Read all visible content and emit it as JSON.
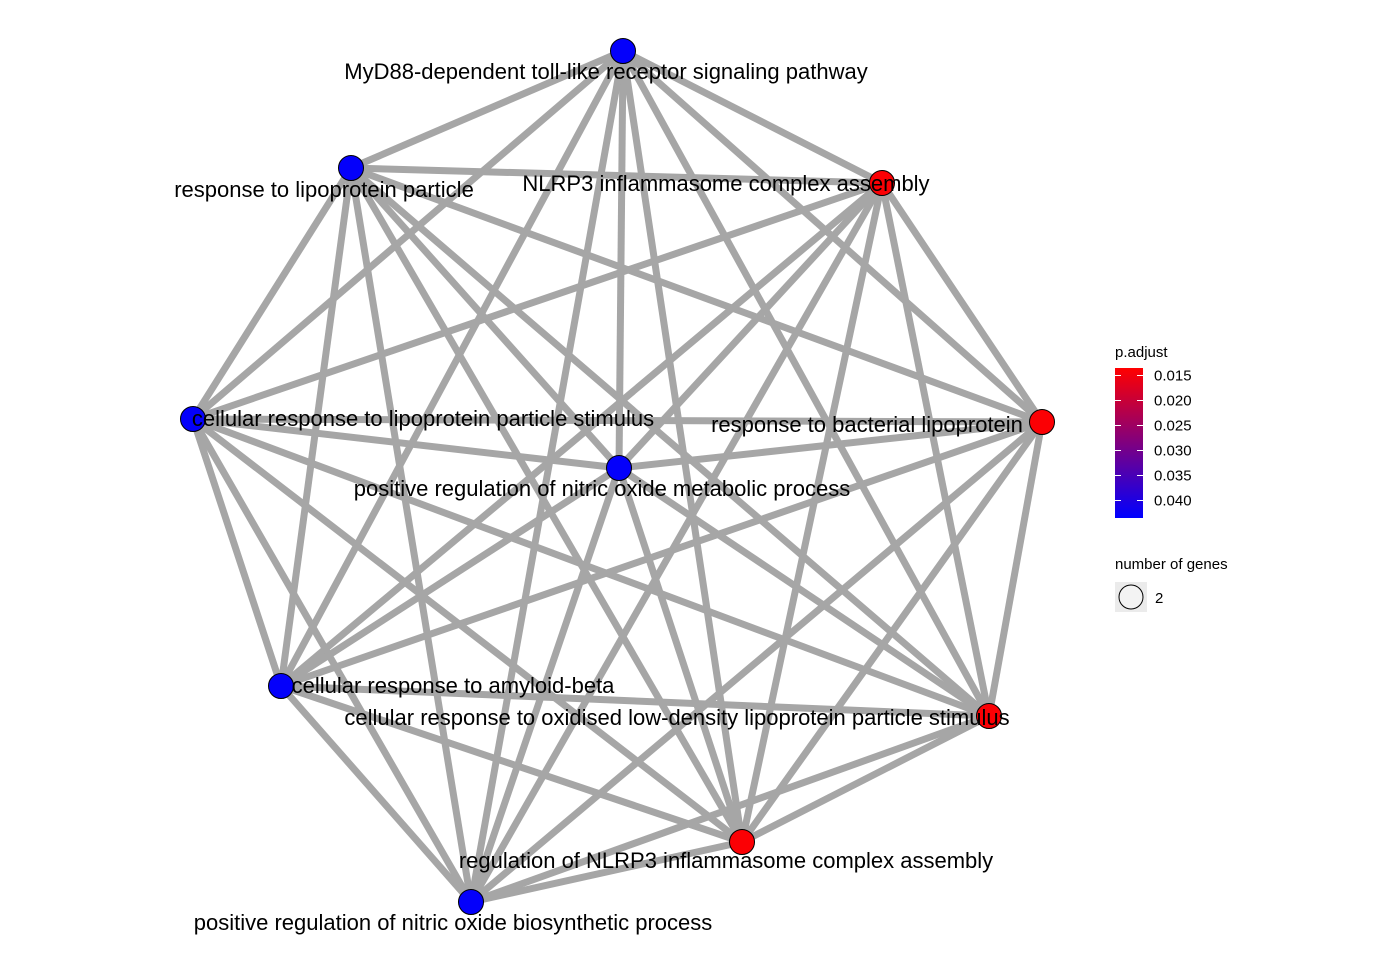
{
  "network": {
    "edge_color": "#a6a6a6",
    "nodes": [
      {
        "id": "myd88",
        "label": "MyD88-dependent toll-like receptor signaling pathway",
        "p_adjust": 0.043,
        "genes": 2
      },
      {
        "id": "nlrp3_assembly",
        "label": "NLRP3 inflammasome complex assembly",
        "p_adjust": 0.014,
        "genes": 2
      },
      {
        "id": "lipoprotein_particle",
        "label": "response to lipoprotein particle",
        "p_adjust": 0.043,
        "genes": 2
      },
      {
        "id": "cell_lipoprotein_stim",
        "label": "cellular response to lipoprotein particle stimulus",
        "p_adjust": 0.043,
        "genes": 2
      },
      {
        "id": "bacterial_lipoprotein",
        "label": "response to bacterial lipoprotein",
        "p_adjust": 0.014,
        "genes": 2
      },
      {
        "id": "no_metabolic",
        "label": "positive regulation of nitric oxide metabolic process",
        "p_adjust": 0.043,
        "genes": 2
      },
      {
        "id": "amyloid_beta",
        "label": "cellular response to amyloid-beta",
        "p_adjust": 0.043,
        "genes": 2
      },
      {
        "id": "oxidised_ldl",
        "label": "cellular response to oxidised low-density lipoprotein particle stimulus",
        "p_adjust": 0.014,
        "genes": 2
      },
      {
        "id": "reg_nlrp3",
        "label": "regulation of NLRP3 inflammasome complex assembly",
        "p_adjust": 0.014,
        "genes": 2
      },
      {
        "id": "no_biosynthetic",
        "label": "positive regulation of nitric oxide biosynthetic process",
        "p_adjust": 0.043,
        "genes": 2
      }
    ],
    "edges": [
      [
        "myd88",
        "lipoprotein_particle"
      ],
      [
        "myd88",
        "nlrp3_assembly"
      ],
      [
        "myd88",
        "cell_lipoprotein_stim"
      ],
      [
        "myd88",
        "bacterial_lipoprotein"
      ],
      [
        "myd88",
        "no_metabolic"
      ],
      [
        "myd88",
        "amyloid_beta"
      ],
      [
        "myd88",
        "oxidised_ldl"
      ],
      [
        "myd88",
        "reg_nlrp3"
      ],
      [
        "myd88",
        "no_biosynthetic"
      ],
      [
        "lipoprotein_particle",
        "nlrp3_assembly"
      ],
      [
        "lipoprotein_particle",
        "cell_lipoprotein_stim"
      ],
      [
        "lipoprotein_particle",
        "bacterial_lipoprotein"
      ],
      [
        "lipoprotein_particle",
        "no_metabolic"
      ],
      [
        "lipoprotein_particle",
        "amyloid_beta"
      ],
      [
        "lipoprotein_particle",
        "oxidised_ldl"
      ],
      [
        "lipoprotein_particle",
        "reg_nlrp3"
      ],
      [
        "lipoprotein_particle",
        "no_biosynthetic"
      ],
      [
        "nlrp3_assembly",
        "cell_lipoprotein_stim"
      ],
      [
        "nlrp3_assembly",
        "bacterial_lipoprotein"
      ],
      [
        "nlrp3_assembly",
        "no_metabolic"
      ],
      [
        "nlrp3_assembly",
        "amyloid_beta"
      ],
      [
        "nlrp3_assembly",
        "oxidised_ldl"
      ],
      [
        "nlrp3_assembly",
        "reg_nlrp3"
      ],
      [
        "nlrp3_assembly",
        "no_biosynthetic"
      ],
      [
        "cell_lipoprotein_stim",
        "bacterial_lipoprotein"
      ],
      [
        "cell_lipoprotein_stim",
        "no_metabolic"
      ],
      [
        "cell_lipoprotein_stim",
        "amyloid_beta"
      ],
      [
        "cell_lipoprotein_stim",
        "oxidised_ldl"
      ],
      [
        "cell_lipoprotein_stim",
        "reg_nlrp3"
      ],
      [
        "cell_lipoprotein_stim",
        "no_biosynthetic"
      ],
      [
        "bacterial_lipoprotein",
        "no_metabolic"
      ],
      [
        "bacterial_lipoprotein",
        "amyloid_beta"
      ],
      [
        "bacterial_lipoprotein",
        "oxidised_ldl"
      ],
      [
        "bacterial_lipoprotein",
        "reg_nlrp3"
      ],
      [
        "bacterial_lipoprotein",
        "no_biosynthetic"
      ],
      [
        "no_metabolic",
        "amyloid_beta"
      ],
      [
        "no_metabolic",
        "oxidised_ldl"
      ],
      [
        "no_metabolic",
        "reg_nlrp3"
      ],
      [
        "no_metabolic",
        "no_biosynthetic"
      ],
      [
        "amyloid_beta",
        "oxidised_ldl"
      ],
      [
        "amyloid_beta",
        "reg_nlrp3"
      ],
      [
        "amyloid_beta",
        "no_biosynthetic"
      ],
      [
        "oxidised_ldl",
        "reg_nlrp3"
      ],
      [
        "oxidised_ldl",
        "no_biosynthetic"
      ],
      [
        "reg_nlrp3",
        "no_biosynthetic"
      ]
    ]
  },
  "legend": {
    "color": {
      "title": "p.adjust",
      "ticks": [
        "0.015",
        "0.020",
        "0.025",
        "0.030",
        "0.035",
        "0.040"
      ],
      "low_color": "#ff0000",
      "high_color": "#0000ff"
    },
    "size": {
      "title": "number of genes",
      "value": "2"
    }
  }
}
